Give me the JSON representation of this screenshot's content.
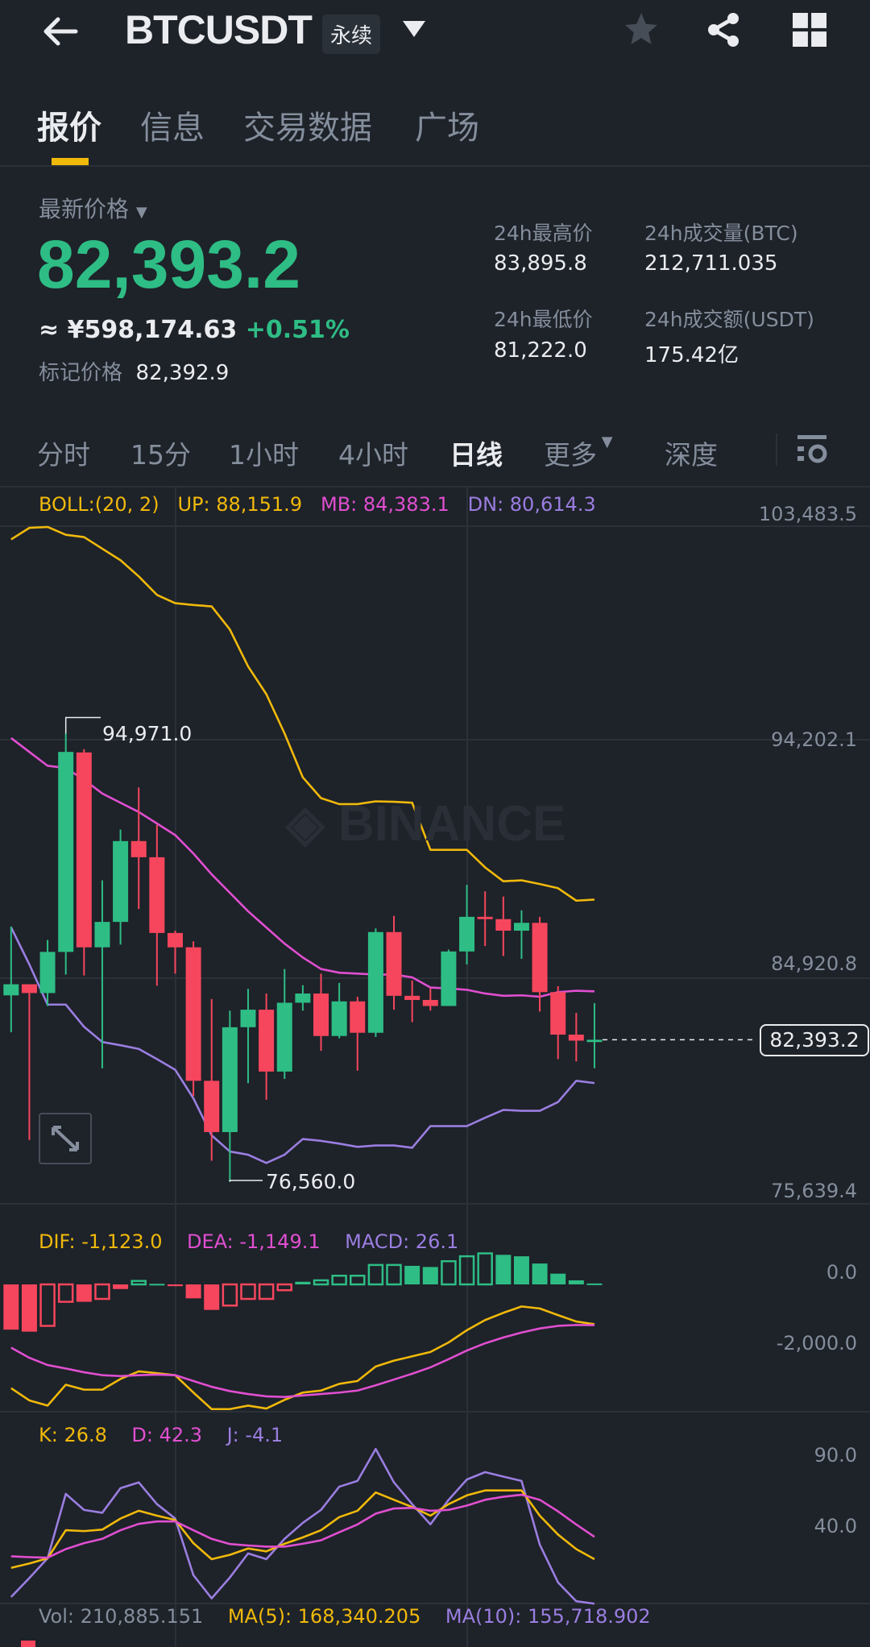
{
  "header": {
    "title": "BTCUSDT",
    "badge": "永续",
    "icons": [
      "back-arrow-icon",
      "caret-down-icon",
      "star-icon",
      "share-icon",
      "grid-icon"
    ]
  },
  "tabs": [
    {
      "label": "报价",
      "active": true
    },
    {
      "label": "信息"
    },
    {
      "label": "交易数据"
    },
    {
      "label": "广场"
    }
  ],
  "price": {
    "label": "最新价格",
    "last": "82,393.2",
    "cny": "≈ ¥598,174.63",
    "change": "+0.51%",
    "mark_label": "标记价格",
    "mark": "82,392.9"
  },
  "stats": {
    "high_label": "24h最高价",
    "high": "83,895.8",
    "vol_btc_label": "24h成交量(BTC)",
    "vol_btc": "212,711.035",
    "low_label": "24h最低价",
    "low": "81,222.0",
    "vol_usdt_label": "24h成交额(USDT)",
    "vol_usdt": "175.42亿"
  },
  "timeframes": [
    {
      "label": "分时"
    },
    {
      "label": "15分"
    },
    {
      "label": "1小时"
    },
    {
      "label": "4小时"
    },
    {
      "label": "日线",
      "active": true
    },
    {
      "label": "更多"
    },
    {
      "label": "深度"
    }
  ],
  "colors": {
    "up": "#2ebd85",
    "down": "#f6465d",
    "yellow": "#f0b90b",
    "pink": "#e04fd0",
    "purple": "#9a7ee0",
    "bg": "#1e2229"
  },
  "watermark": "BINANCE",
  "chart_data": [
    {
      "type": "candlestick",
      "legend": {
        "boll": "BOLL:(20, 2)",
        "up": "UP: 88,151.9",
        "mb": "MB: 84,383.1",
        "dn": "DN: 80,614.3"
      },
      "y_ticks": [
        "103,483.5",
        "94,202.1",
        "84,920.8",
        "75,639.4"
      ],
      "ylim": [
        75639.4,
        103483.5
      ],
      "current_price": "82,393.2",
      "high_marker": "94,971.0",
      "low_marker": "76,560.0",
      "ohlc": [
        [
          84218,
          87047,
          82700,
          84674
        ],
        [
          84674,
          84674,
          78278,
          84313
        ],
        [
          84313,
          86496,
          83782,
          86003
        ],
        [
          86003,
          94971,
          85073,
          94221
        ],
        [
          94200,
          94335,
          85035,
          86192
        ],
        [
          86192,
          88945,
          81220,
          87236
        ],
        [
          87236,
          91032,
          86306,
          90558
        ],
        [
          90558,
          92760,
          87768,
          89894
        ],
        [
          89894,
          91222,
          84617,
          86781
        ],
        [
          86781,
          86876,
          85111,
          86192
        ],
        [
          86192,
          86439,
          80081,
          80707
        ],
        [
          80707,
          84067,
          77424,
          78600
        ],
        [
          78600,
          83592,
          76560,
          82909
        ],
        [
          82909,
          84484,
          80612,
          83630
        ],
        [
          83630,
          84294,
          79929,
          81087
        ],
        [
          81087,
          85300,
          80783,
          83915
        ],
        [
          83915,
          84636,
          83592,
          84294
        ],
        [
          84294,
          85111,
          81941,
          82548
        ],
        [
          82548,
          84731,
          82453,
          83971
        ],
        [
          83971,
          84161,
          81125,
          82681
        ],
        [
          82681,
          86971,
          82510,
          86819
        ],
        [
          86819,
          87483,
          83630,
          84200
        ],
        [
          84200,
          84826,
          83118,
          84029
        ],
        [
          84029,
          84503,
          83592,
          83782
        ],
        [
          83782,
          86098,
          83782,
          86022
        ],
        [
          86022,
          88755,
          85490,
          87445
        ],
        [
          87445,
          88489,
          86249,
          87350
        ],
        [
          87350,
          88280,
          85832,
          86876
        ],
        [
          86876,
          87711,
          85718,
          87198
        ],
        [
          87198,
          87445,
          83554,
          84351
        ],
        [
          84351,
          84598,
          81599,
          82605
        ],
        [
          82605,
          83497,
          81504,
          82358
        ],
        [
          82300,
          83896,
          81222,
          82393.2
        ]
      ],
      "boll_up": [
        102952,
        103427,
        103464,
        103142,
        103047,
        102572,
        102098,
        101434,
        100674,
        100333,
        100257,
        100200,
        99251,
        97733,
        96594,
        94980,
        93177,
        92323,
        92076,
        92076,
        92190,
        92171,
        92133,
        90197,
        90197,
        90197,
        89476,
        88907,
        88945,
        88793,
        88622,
        88110,
        88151.9
      ],
      "boll_mb": [
        94791,
        94221,
        93652,
        93557,
        93082,
        92513,
        92133,
        91754,
        91279,
        90805,
        90046,
        89192,
        88432,
        87673,
        87009,
        86345,
        85775,
        85301,
        85149,
        85111,
        85073,
        85073,
        84959,
        84541,
        84503,
        84446,
        84295,
        84200,
        84219,
        84162,
        84352,
        84408,
        84383.1
      ],
      "boll_dn": [
        87009,
        85490,
        83839,
        83839,
        82928,
        82302,
        82169,
        82017,
        81599,
        81163,
        79986,
        78468,
        77803,
        77671,
        77329,
        77671,
        78316,
        78240,
        78126,
        77993,
        78050,
        78050,
        77955,
        78847,
        78847,
        78847,
        79189,
        79512,
        79474,
        79474,
        79834,
        80707,
        80614.3
      ]
    },
    {
      "type": "macd",
      "legend": {
        "dif": "DIF: -1,123.0",
        "dea": "DEA: -1,149.1",
        "macd": "MACD: 26.1"
      },
      "y_ticks": [
        "0.0",
        "-2,000.0"
      ],
      "hist": [
        -1276,
        -1333,
        -1170,
        -491,
        -491,
        -409,
        -131,
        98,
        16,
        -49,
        -393,
        -720,
        -597,
        -409,
        -409,
        -164,
        74,
        115,
        245,
        245,
        548,
        548,
        524,
        491,
        654,
        793,
        875,
        834,
        793,
        589,
        303,
        115,
        26.1
      ],
      "hist_hollow": [
        false,
        false,
        true,
        true,
        false,
        true,
        false,
        true,
        false,
        false,
        false,
        false,
        true,
        true,
        true,
        true,
        false,
        true,
        true,
        true,
        true,
        true,
        false,
        false,
        true,
        true,
        true,
        false,
        false,
        false,
        false,
        false,
        false
      ],
      "dif": [
        -2928,
        -3272,
        -3419,
        -2830,
        -2969,
        -2969,
        -2667,
        -2454,
        -2503,
        -2560,
        -3051,
        -3517,
        -3517,
        -3419,
        -3501,
        -3256,
        -3051,
        -2994,
        -2806,
        -2724,
        -2315,
        -2151,
        -2029,
        -1906,
        -1636,
        -1292,
        -1006,
        -802,
        -622,
        -679,
        -867,
        -1047,
        -1123
      ],
      "dea": [
        -1783,
        -2070,
        -2274,
        -2372,
        -2479,
        -2560,
        -2585,
        -2560,
        -2544,
        -2560,
        -2724,
        -2888,
        -3010,
        -3092,
        -3157,
        -3174,
        -3133,
        -3092,
        -3051,
        -2994,
        -2847,
        -2683,
        -2519,
        -2339,
        -2110,
        -1865,
        -1661,
        -1497,
        -1358,
        -1243,
        -1170,
        -1145,
        -1149.1
      ]
    },
    {
      "type": "kdj",
      "legend": {
        "k": "K: 26.8",
        "d": "D: 42.3",
        "j": "J: -4.1"
      },
      "y_ticks": [
        "90.0",
        "40.0"
      ],
      "k": [
        20.8,
        23.8,
        27.4,
        46.9,
        46.3,
        47.3,
        55.0,
        60.4,
        57.0,
        54.0,
        37.9,
        26.8,
        29.8,
        34.2,
        32.2,
        37.5,
        41.9,
        46.9,
        56.0,
        60.4,
        73.1,
        68.0,
        63.0,
        57.0,
        65.0,
        71.1,
        74.5,
        74.5,
        74.5,
        57.0,
        43.9,
        33.8,
        26.8
      ],
      "d": [
        28.8,
        28.2,
        27.8,
        33.8,
        37.9,
        40.9,
        46.9,
        51.3,
        53.0,
        53.0,
        46.9,
        40.9,
        37.3,
        36.3,
        35.5,
        35.5,
        37.5,
        39.9,
        45.5,
        50.9,
        58.4,
        62.0,
        62.4,
        60.4,
        61.0,
        64.0,
        68.0,
        70.1,
        71.5,
        68.0,
        60.0,
        50.9,
        42.3
      ],
      "j": [
        0.6,
        13.7,
        27.4,
        72.1,
        61.0,
        59.0,
        76.1,
        80.1,
        65.0,
        55.0,
        15.7,
        -0.4,
        14.1,
        30.8,
        26.8,
        40.9,
        52.0,
        61.0,
        77.1,
        81.1,
        103.3,
        80.1,
        65.0,
        51.0,
        68.0,
        82.1,
        87.2,
        84.1,
        81.1,
        36.9,
        10.7,
        -2.4,
        -4.1
      ]
    },
    {
      "type": "volume",
      "legend": {
        "vol": "Vol: 210,885.151",
        "ma5": "MA(5): 168,340.205",
        "ma10": "MA(10): 155,718.902"
      }
    }
  ]
}
